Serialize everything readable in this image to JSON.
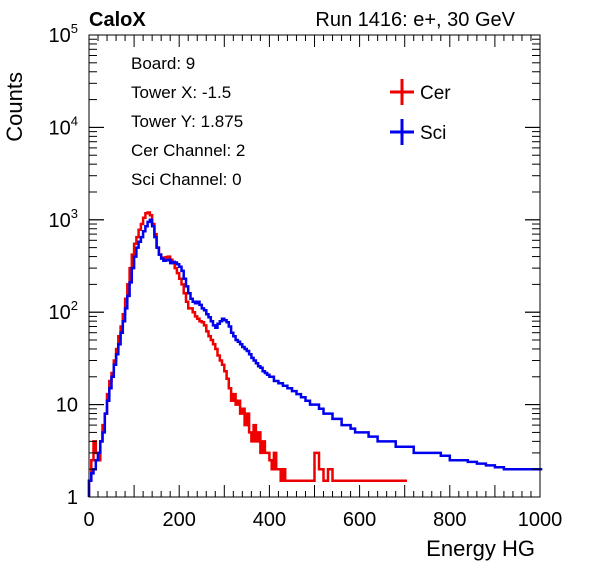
{
  "header": {
    "left": "CaloX",
    "right": "Run 1416: e+, 30 GeV"
  },
  "info_box": [
    "Board: 9",
    "Tower X: -1.5",
    "Tower Y: 1.875",
    "Cer Channel: 2",
    "Sci Channel: 0"
  ],
  "chart_data": {
    "type": "line",
    "title": "",
    "xlabel": "Energy HG",
    "ylabel": "Counts",
    "xlim": [
      0,
      1000
    ],
    "ylim": [
      1,
      100000
    ],
    "y_scale": "log",
    "x_ticks": [
      0,
      200,
      400,
      600,
      800,
      1000
    ],
    "x_tick_labels": [
      "0",
      "200",
      "400",
      "600",
      "800",
      "1000"
    ],
    "y_ticks": [
      1,
      10,
      100,
      1000,
      10000,
      100000
    ],
    "y_tick_labels": [
      {
        "base": "1",
        "exp": ""
      },
      {
        "base": "10",
        "exp": ""
      },
      {
        "base": "10",
        "exp": "2"
      },
      {
        "base": "10",
        "exp": "3"
      },
      {
        "base": "10",
        "exp": "4"
      },
      {
        "base": "10",
        "exp": "5"
      }
    ],
    "legend_position": "top-right",
    "series": [
      {
        "name": "Cer",
        "color": "#ee0000",
        "x": [
          0,
          5,
          10,
          15,
          20,
          25,
          30,
          35,
          40,
          45,
          50,
          55,
          60,
          65,
          70,
          75,
          80,
          85,
          90,
          95,
          100,
          105,
          110,
          115,
          120,
          125,
          130,
          135,
          140,
          145,
          150,
          155,
          160,
          165,
          170,
          175,
          180,
          185,
          190,
          195,
          200,
          205,
          210,
          215,
          220,
          225,
          230,
          235,
          240,
          245,
          250,
          255,
          260,
          265,
          270,
          275,
          280,
          285,
          290,
          295,
          300,
          305,
          310,
          315,
          320,
          325,
          330,
          335,
          340,
          345,
          350,
          355,
          360,
          365,
          370,
          375,
          380,
          385,
          390,
          395,
          400,
          405,
          410,
          415,
          420,
          425,
          430,
          435,
          440,
          445,
          450,
          455,
          460,
          465,
          470,
          475,
          480,
          485,
          490,
          495,
          500,
          510,
          520,
          530,
          540,
          550,
          560,
          580,
          600,
          620,
          640,
          660,
          680,
          700
        ],
        "y": [
          1.5,
          2.5,
          4,
          3,
          2.5,
          4,
          6,
          8,
          13,
          18,
          22,
          30,
          40,
          55,
          70,
          95,
          140,
          200,
          300,
          420,
          550,
          650,
          780,
          900,
          1050,
          1180,
          1200,
          1120,
          900,
          700,
          500,
          420,
          390,
          380,
          395,
          400,
          370,
          340,
          300,
          265,
          230,
          200,
          160,
          130,
          110,
          110,
          100,
          90,
          85,
          80,
          78,
          72,
          62,
          55,
          50,
          45,
          40,
          34,
          30,
          27,
          23,
          19,
          15,
          11,
          13,
          10,
          11,
          8,
          9,
          6,
          8,
          5,
          4,
          6,
          4,
          5,
          3,
          4,
          3,
          3,
          2.5,
          2,
          3,
          2,
          2,
          1.5,
          2,
          1.5,
          1.5,
          1.5,
          1.5,
          1.5,
          1.5,
          1.5,
          1.5,
          1.5,
          1.5,
          1.5,
          1.5,
          1.5,
          3,
          2,
          1.5,
          2,
          1.5,
          1.5,
          1.5,
          1.5,
          1.5,
          1.5,
          1.5,
          1.5,
          1.5,
          1.5
        ]
      },
      {
        "name": "Sci",
        "color": "#0000ee",
        "x": [
          0,
          5,
          10,
          15,
          20,
          25,
          30,
          35,
          40,
          45,
          50,
          55,
          60,
          65,
          70,
          75,
          80,
          85,
          90,
          95,
          100,
          105,
          110,
          115,
          120,
          125,
          130,
          135,
          140,
          145,
          150,
          155,
          160,
          165,
          170,
          175,
          180,
          185,
          190,
          195,
          200,
          205,
          210,
          215,
          220,
          225,
          230,
          235,
          240,
          245,
          250,
          255,
          260,
          265,
          270,
          275,
          280,
          285,
          290,
          295,
          300,
          305,
          310,
          315,
          320,
          325,
          330,
          335,
          340,
          345,
          350,
          355,
          360,
          365,
          370,
          375,
          380,
          385,
          390,
          395,
          400,
          410,
          420,
          430,
          440,
          450,
          460,
          470,
          480,
          490,
          500,
          510,
          520,
          530,
          540,
          550,
          560,
          570,
          580,
          590,
          600,
          620,
          640,
          660,
          680,
          700,
          720,
          740,
          760,
          780,
          800,
          820,
          840,
          860,
          880,
          900,
          920,
          940,
          960,
          980,
          1000
        ],
        "y": [
          1.5,
          1.8,
          2,
          2.5,
          3,
          4,
          5,
          8,
          11,
          15,
          20,
          27,
          35,
          45,
          60,
          80,
          110,
          150,
          210,
          300,
          400,
          500,
          580,
          650,
          750,
          850,
          950,
          1000,
          850,
          650,
          500,
          420,
          380,
          360,
          365,
          370,
          340,
          350,
          345,
          330,
          310,
          280,
          230,
          190,
          160,
          140,
          130,
          125,
          130,
          120,
          110,
          105,
          95,
          88,
          80,
          72,
          68,
          75,
          80,
          85,
          82,
          78,
          70,
          60,
          55,
          50,
          48,
          45,
          42,
          40,
          38,
          35,
          32,
          30,
          28,
          26,
          25,
          23,
          22,
          21,
          20,
          18,
          17,
          16,
          15,
          14,
          13,
          12,
          11,
          10,
          10,
          9,
          8,
          8,
          7,
          7,
          6,
          6,
          5.5,
          5,
          5,
          4.5,
          4,
          4,
          3.5,
          3.5,
          3,
          3,
          3,
          2.8,
          2.5,
          2.5,
          2.4,
          2.3,
          2.2,
          2.1,
          2,
          2,
          2,
          2,
          2
        ]
      }
    ]
  }
}
